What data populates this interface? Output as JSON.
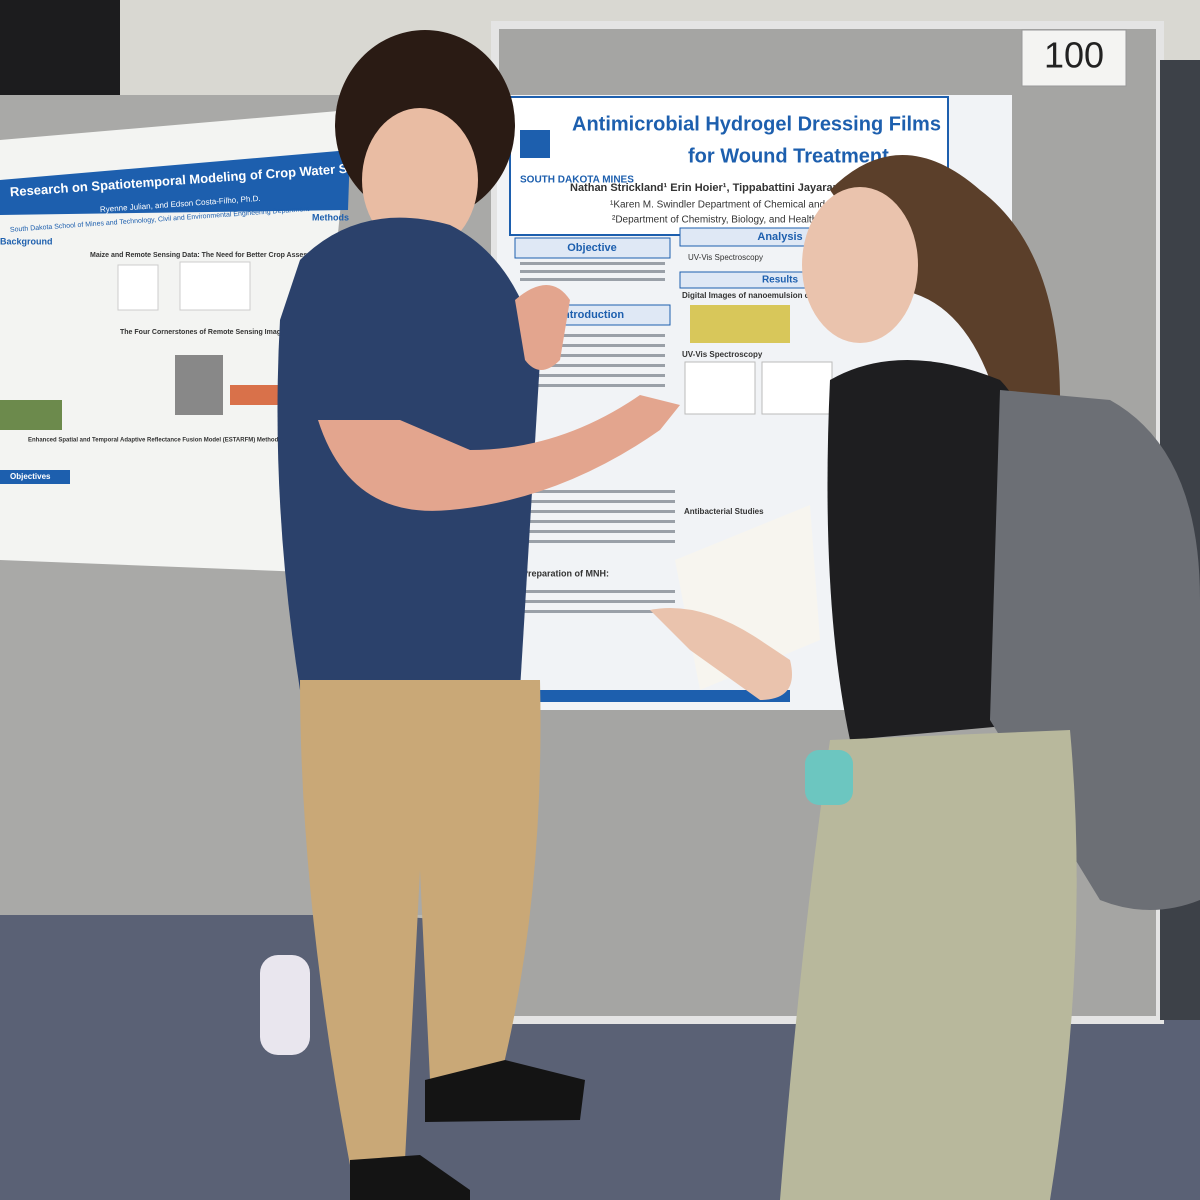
{
  "booth_number": "100",
  "left_poster": {
    "title": "Research on Spatiotemporal Modeling of Crop Water Stress Index",
    "authors": "Ryenne Julian, and Edson Costa-Filho, Ph.D.",
    "affiliation": "South Dakota School of Mines and Technology, Civil and Environmental Engineering Department",
    "section_1": "Maize and Remote Sensing Data: The Need for Better Crop Assessment Modeling",
    "section_2": "The Four Cornerstones of Remote Sensing Imagery Data",
    "section_3": "Enhanced Spatial and Temporal Adaptive Reflectance Fusion Model (ESTARFM) Methodology Flowchart",
    "objectives": "Objectives",
    "background": "Background",
    "methods": "Methods"
  },
  "right_poster": {
    "logo_text": "SOUTH DAKOTA MINES",
    "title_line_1": "Antimicrobial Hydrogel Dressing Films",
    "title_line_2": "for Wound Treatment",
    "authors": "Nathan Strickland¹ Erin Hoier¹, Tippabattini Jayaramudu¹, Tanvi",
    "affiliation_1": "¹Karen M. Swindler Department of Chemical and Biological",
    "affiliation_2": "²Department of Chemistry, Biology, and Health S",
    "objective": "Objective",
    "introduction": "Introduction",
    "analysis": "Analysis",
    "results": "Results",
    "uv_vis": "UV-Vis Spectroscopy",
    "digital_images": "Digital Images of nanoemulsion of n-CUR",
    "preparation": "Preparation of MNH:",
    "antibacterial": "Antibacterial Studies"
  }
}
